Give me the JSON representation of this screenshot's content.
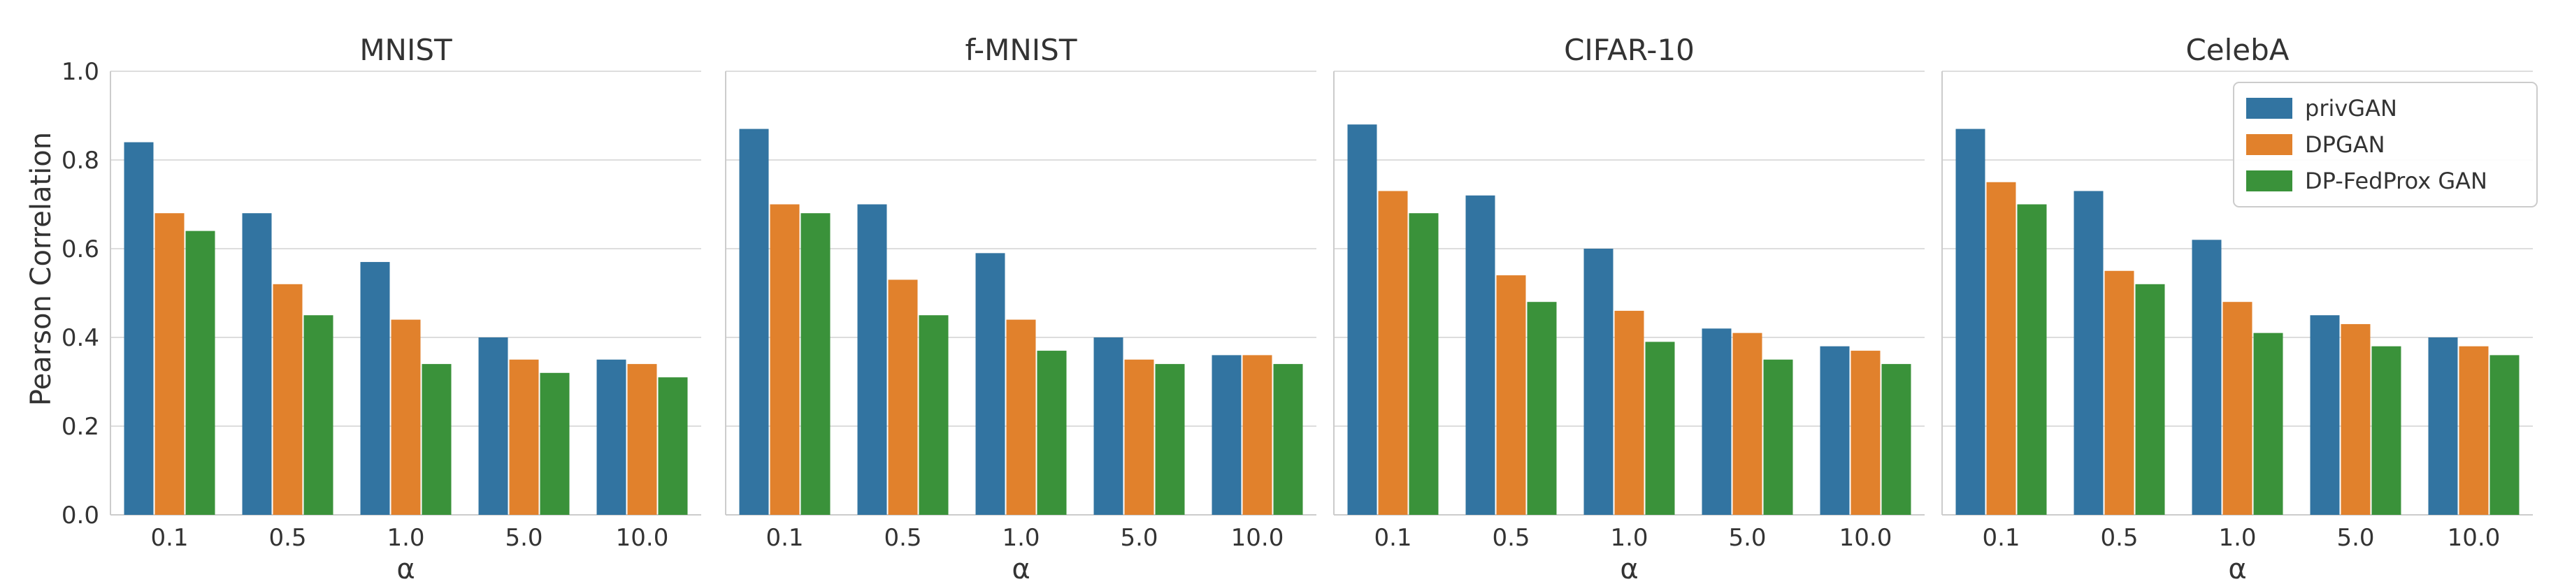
{
  "chart_data": {
    "type": "bar",
    "ylabel": "Pearson Correlation",
    "ylim": [
      0,
      1.0
    ],
    "yticks": [
      "0.0",
      "0.2",
      "0.4",
      "0.6",
      "0.8",
      "1.0"
    ],
    "grid": true,
    "legend_position": "top-right",
    "colors": [
      "#3274a1",
      "#e1812c",
      "#3a923a"
    ],
    "legend": [
      "privGAN",
      "DPGAN",
      "DP-FedProx GAN"
    ],
    "panels": [
      {
        "title": "MNIST",
        "xlabel": "α",
        "categories": [
          "0.1",
          "0.5",
          "1.0",
          "5.0",
          "10.0"
        ],
        "series": [
          {
            "name": "privGAN",
            "values": [
              0.84,
              0.68,
              0.57,
              0.4,
              0.35
            ]
          },
          {
            "name": "DPGAN",
            "values": [
              0.68,
              0.52,
              0.44,
              0.35,
              0.34
            ]
          },
          {
            "name": "DP-FedProx GAN",
            "values": [
              0.64,
              0.45,
              0.34,
              0.32,
              0.31
            ]
          }
        ]
      },
      {
        "title": "f-MNIST",
        "xlabel": "α",
        "categories": [
          "0.1",
          "0.5",
          "1.0",
          "5.0",
          "10.0"
        ],
        "series": [
          {
            "name": "privGAN",
            "values": [
              0.87,
              0.7,
              0.59,
              0.4,
              0.36
            ]
          },
          {
            "name": "DPGAN",
            "values": [
              0.7,
              0.53,
              0.44,
              0.35,
              0.36
            ]
          },
          {
            "name": "DP-FedProx GAN",
            "values": [
              0.68,
              0.45,
              0.37,
              0.34,
              0.34
            ]
          }
        ]
      },
      {
        "title": "CIFAR-10",
        "xlabel": "α",
        "categories": [
          "0.1",
          "0.5",
          "1.0",
          "5.0",
          "10.0"
        ],
        "series": [
          {
            "name": "privGAN",
            "values": [
              0.88,
              0.72,
              0.6,
              0.42,
              0.38
            ]
          },
          {
            "name": "DPGAN",
            "values": [
              0.73,
              0.54,
              0.46,
              0.41,
              0.37
            ]
          },
          {
            "name": "DP-FedProx GAN",
            "values": [
              0.68,
              0.48,
              0.39,
              0.35,
              0.34
            ]
          }
        ]
      },
      {
        "title": "CelebA",
        "xlabel": "α",
        "categories": [
          "0.1",
          "0.5",
          "1.0",
          "5.0",
          "10.0"
        ],
        "series": [
          {
            "name": "privGAN",
            "values": [
              0.87,
              0.73,
              0.62,
              0.45,
              0.4
            ]
          },
          {
            "name": "DPGAN",
            "values": [
              0.75,
              0.55,
              0.48,
              0.43,
              0.38
            ]
          },
          {
            "name": "DP-FedProx GAN",
            "values": [
              0.7,
              0.52,
              0.41,
              0.38,
              0.36
            ]
          }
        ]
      }
    ]
  }
}
